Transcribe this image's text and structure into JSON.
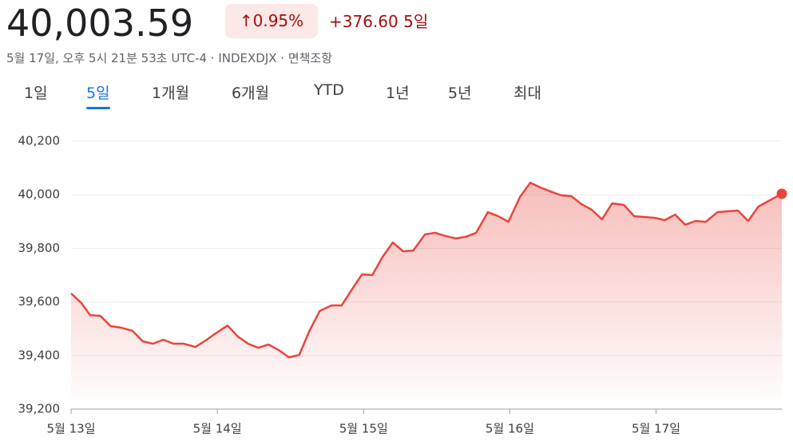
{
  "header": {
    "price": "40,003.59",
    "change_pct": "0.95%",
    "change": "+376.60",
    "period": "5일",
    "timestamp": "5월 17일, 오후 5시 21분 53초 UTC-4 · INDEXDJX · 면책조항",
    "tabs": [
      {
        "label": "1일",
        "selected": false
      },
      {
        "label": "5일",
        "selected": true
      },
      {
        "label": "1개월",
        "selected": false
      },
      {
        "label": "6개월",
        "selected": false
      },
      {
        "label": "YTD",
        "selected": false
      },
      {
        "label": "1년",
        "selected": false
      },
      {
        "label": "5년",
        "selected": false
      },
      {
        "label": "최대",
        "selected": false
      }
    ]
  },
  "chart_data": {
    "type": "area",
    "color": "#e8453c",
    "grid": true,
    "x": [
      0,
      0.07,
      0.13,
      0.2,
      0.27,
      0.34,
      0.42,
      0.49,
      0.56,
      0.63,
      0.7,
      0.77,
      0.85,
      0.92,
      0.99,
      1.07,
      1.14,
      1.21,
      1.28,
      1.35,
      1.42,
      1.49,
      1.56,
      1.63,
      1.7,
      1.78,
      1.85,
      1.92,
      1.99,
      2.06,
      2.13,
      2.2,
      2.27,
      2.34,
      2.42,
      2.49,
      2.56,
      2.63,
      2.7,
      2.77,
      2.85,
      2.92,
      2.99,
      3.07,
      3.14,
      3.21,
      3.28,
      3.35,
      3.42,
      3.49,
      3.56,
      3.63,
      3.7,
      3.78,
      3.85,
      3.92,
      3.99,
      4.06,
      4.13,
      4.2,
      4.27,
      4.34,
      4.42,
      4.49,
      4.56,
      4.63,
      4.7,
      4.77,
      4.86
    ],
    "values": [
      39632,
      39596,
      39551,
      39548,
      39510,
      39504,
      39492,
      39453,
      39444,
      39459,
      39444,
      39444,
      39432,
      39456,
      39483,
      39512,
      39471,
      39444,
      39429,
      39441,
      39420,
      39393,
      39402,
      39492,
      39566,
      39587,
      39587,
      39646,
      39703,
      39700,
      39768,
      39822,
      39789,
      39792,
      39852,
      39858,
      39846,
      39837,
      39843,
      39858,
      39935,
      39920,
      39899,
      39992,
      40045,
      40027,
      40012,
      39998,
      39995,
      39965,
      39944,
      39908,
      39968,
      39962,
      39920,
      39917,
      39914,
      39905,
      39926,
      39888,
      39902,
      39899,
      39935,
      39938,
      39941,
      39902,
      39956,
      39977,
      40003.59
    ],
    "xlim": [
      0,
      4.86
    ],
    "xticks": [
      {
        "value": 0,
        "label": "5월 13일"
      },
      {
        "value": 1,
        "label": "5월 14일"
      },
      {
        "value": 2,
        "label": "5월 15일"
      },
      {
        "value": 3,
        "label": "5월 16일"
      },
      {
        "value": 4,
        "label": "5월 17일"
      }
    ],
    "ylim": [
      39200,
      40200
    ],
    "yticks": [
      {
        "value": 39200,
        "label": "39,200"
      },
      {
        "value": 39400,
        "label": "39,400"
      },
      {
        "value": 39600,
        "label": "39,600"
      },
      {
        "value": 39800,
        "label": "39,800"
      },
      {
        "value": 40000,
        "label": "40,000"
      },
      {
        "value": 40200,
        "label": "40,200"
      }
    ]
  }
}
